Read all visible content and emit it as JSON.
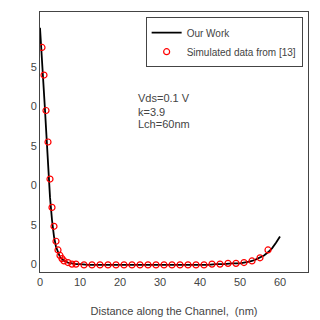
{
  "chart_data": {
    "type": "line",
    "xlabel": "Distance along the Channel,  (nm)",
    "xlim": [
      0,
      67
    ],
    "ylim": [
      0.49,
      0.82
    ],
    "xticks": [
      0,
      10,
      20,
      30,
      40,
      50,
      60
    ],
    "yticks": [
      {
        "value": 0.5,
        "label": "0"
      },
      {
        "value": 0.55,
        "label": "5"
      },
      {
        "value": 0.6,
        "label": "0"
      },
      {
        "value": 0.65,
        "label": "5"
      },
      {
        "value": 0.7,
        "label": "0"
      },
      {
        "value": 0.75,
        "label": "5"
      },
      {
        "value": 0.8,
        "label": ""
      }
    ],
    "grid": false,
    "legend": "upper right",
    "annotations": [
      "Vds=0.1 V",
      "k=3.9",
      "Lch=60nm"
    ],
    "series": [
      {
        "name": "Our Work",
        "type": "line",
        "color": "#000000",
        "line_style": "solid",
        "x": [
          0.0,
          0.2,
          0.4,
          0.6,
          0.8,
          1.0,
          1.2,
          1.5,
          1.8,
          2.1,
          2.5,
          3.0,
          3.5,
          4.0,
          4.5,
          5.0,
          5.5,
          6.0,
          6.5,
          7.0,
          7.5,
          8.0,
          9.0,
          10.0,
          12.0,
          14.0,
          16.0,
          18.0,
          20.0,
          22.0,
          24.0,
          26.0,
          28.0,
          30.0,
          32.0,
          34.0,
          36.0,
          38.0,
          40.0,
          42.0,
          44.0,
          46.0,
          48.0,
          50.0,
          52.0,
          53.0,
          54.0,
          55.0,
          56.0,
          57.0,
          58.0,
          59.0,
          60.0
        ],
        "values": [
          0.8,
          0.785,
          0.77,
          0.753,
          0.736,
          0.718,
          0.7,
          0.673,
          0.645,
          0.618,
          0.585,
          0.556,
          0.535,
          0.522,
          0.514,
          0.509,
          0.506,
          0.504,
          0.503,
          0.502,
          0.501,
          0.501,
          0.5,
          0.5,
          0.499,
          0.499,
          0.499,
          0.499,
          0.499,
          0.499,
          0.499,
          0.499,
          0.499,
          0.499,
          0.499,
          0.499,
          0.499,
          0.499,
          0.499,
          0.499,
          0.5,
          0.5,
          0.501,
          0.501,
          0.503,
          0.504,
          0.506,
          0.508,
          0.511,
          0.515,
          0.52,
          0.527,
          0.535
        ]
      },
      {
        "name": "Simulated data from [13]",
        "type": "scatter",
        "color": "#ff0000",
        "marker": "circle-open",
        "x": [
          0.5,
          1.0,
          1.5,
          2.0,
          2.5,
          3.0,
          3.5,
          4.0,
          4.5,
          5.0,
          5.5,
          6.0,
          7.0,
          8.0,
          9.0,
          11.0,
          13.0,
          15.0,
          17.0,
          19.0,
          21.0,
          23.0,
          25.0,
          27.0,
          29.0,
          31.0,
          33.0,
          35.0,
          37.0,
          39.0,
          41.0,
          43.0,
          45.0,
          47.0,
          49.0,
          51.0,
          53.0,
          55.0,
          57.0
        ],
        "values": [
          0.775,
          0.74,
          0.695,
          0.655,
          0.608,
          0.572,
          0.548,
          0.529,
          0.518,
          0.511,
          0.507,
          0.504,
          0.502,
          0.5,
          0.5,
          0.499,
          0.499,
          0.499,
          0.499,
          0.499,
          0.499,
          0.499,
          0.499,
          0.499,
          0.499,
          0.499,
          0.499,
          0.499,
          0.499,
          0.499,
          0.499,
          0.5,
          0.5,
          0.501,
          0.501,
          0.502,
          0.504,
          0.508,
          0.518
        ]
      }
    ]
  }
}
